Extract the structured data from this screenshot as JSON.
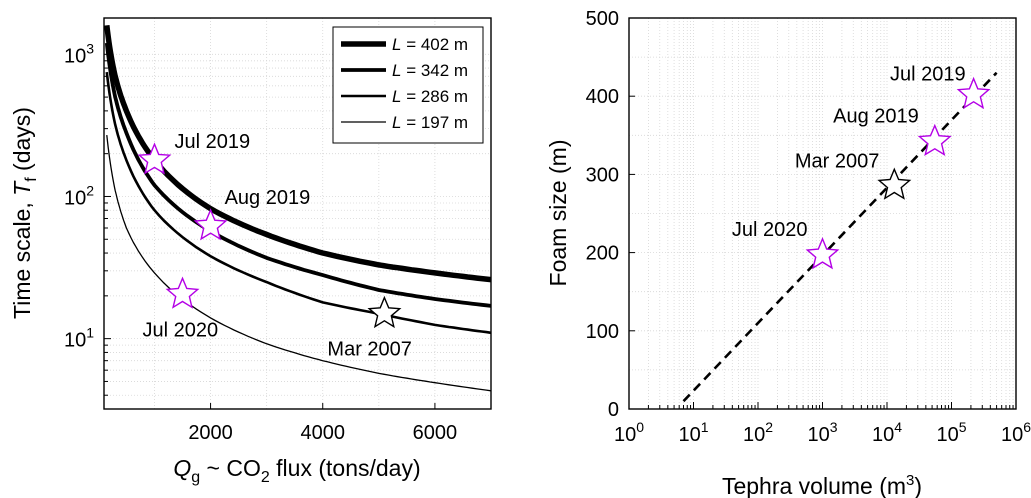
{
  "chart_data": [
    {
      "type": "line",
      "title": "",
      "xlabel": "Q_g ~ CO_2 flux (tons/day)",
      "xlabel_parts": {
        "q": "Q",
        "q_sub": "g",
        "mid": " ~ CO",
        "co2_sub": "2",
        "rest": " flux (tons/day)"
      },
      "ylabel": "Time scale, T_f (days)",
      "ylabel_parts": {
        "main": "Time scale, ",
        "t": "T",
        "t_sub": "f",
        "rest": " (days)"
      },
      "xlim": [
        100,
        7000
      ],
      "ylim": [
        3.2,
        1800
      ],
      "yscale": "log",
      "x_ticks": [
        2000,
        4000,
        6000
      ],
      "x_tick_labels": [
        "2000",
        "4000",
        "6000"
      ],
      "y_ticks": [
        10,
        100,
        1000
      ],
      "y_tick_labels": [
        {
          "base": "10",
          "exp": "1"
        },
        {
          "base": "10",
          "exp": "2"
        },
        {
          "base": "10",
          "exp": "3"
        }
      ],
      "grid": true,
      "legend_position": "top-right",
      "series": [
        {
          "name": "L = 402 m",
          "L": "402",
          "unit": "m",
          "stroke": 5.5,
          "x": [
            150,
            300,
            500,
            1000,
            2000,
            3000,
            4000,
            5000,
            6000,
            7000
          ],
          "y": [
            1600,
            700,
            400,
            180,
            82,
            54,
            40,
            33,
            29,
            26
          ]
        },
        {
          "name": "L = 342 m",
          "L": "342",
          "unit": "m",
          "stroke": 3.8,
          "x": [
            150,
            300,
            500,
            1000,
            2000,
            3000,
            4000,
            5000,
            6000,
            7000
          ],
          "y": [
            1200,
            500,
            280,
            120,
            57,
            37,
            28,
            22,
            19,
            17
          ]
        },
        {
          "name": "L = 286 m",
          "L": "286",
          "unit": "m",
          "stroke": 2.6,
          "x": [
            150,
            300,
            500,
            1000,
            2000,
            3000,
            4000,
            5000,
            6000,
            7000
          ],
          "y": [
            750,
            320,
            180,
            80,
            38,
            25,
            18,
            15,
            12.5,
            11
          ]
        },
        {
          "name": "L = 197 m",
          "L": "197",
          "unit": "m",
          "stroke": 1.3,
          "x": [
            150,
            300,
            500,
            1000,
            2000,
            3000,
            4000,
            5000,
            6000,
            7000
          ],
          "y": [
            270,
            110,
            60,
            29,
            14,
            9.2,
            7,
            5.7,
            4.9,
            4.3
          ]
        }
      ],
      "points": [
        {
          "label": "Jul 2019",
          "x": 1000,
          "y": 180,
          "color": "#b400e6"
        },
        {
          "label": "Aug 2019",
          "x": 2000,
          "y": 62,
          "color": "#b400e6"
        },
        {
          "label": "Jul 2020",
          "x": 1500,
          "y": 20.5,
          "color": "#b400e6"
        },
        {
          "label": "Mar 2007",
          "x": 5100,
          "y": 15,
          "color": "#000000"
        }
      ]
    },
    {
      "type": "scatter",
      "title": "",
      "xlabel": "Tephra volume (m^3)",
      "xlabel_parts": {
        "main": "Tephra volume (m",
        "sup": "3",
        "rest": ")"
      },
      "ylabel": "Foam size (m)",
      "xlim": [
        1,
        1000000
      ],
      "xscale": "log",
      "ylim": [
        0,
        500
      ],
      "x_ticks": [
        1,
        10,
        100,
        1000,
        10000,
        100000,
        1000000
      ],
      "x_tick_labels": [
        {
          "base": "10",
          "exp": "0"
        },
        {
          "base": "10",
          "exp": "1"
        },
        {
          "base": "10",
          "exp": "2"
        },
        {
          "base": "10",
          "exp": "3"
        },
        {
          "base": "10",
          "exp": "4"
        },
        {
          "base": "10",
          "exp": "5"
        },
        {
          "base": "10",
          "exp": "6"
        }
      ],
      "y_ticks": [
        0,
        100,
        200,
        300,
        400,
        500
      ],
      "y_tick_labels": [
        "0",
        "100",
        "200",
        "300",
        "400",
        "500"
      ],
      "grid": true,
      "fit_line": {
        "x": [
          7,
          500000
        ],
        "y": [
          10,
          430
        ],
        "style": "dashed"
      },
      "points": [
        {
          "label": "Jul 2019",
          "x": 220000,
          "y": 402,
          "color": "#b400e6"
        },
        {
          "label": "Aug 2019",
          "x": 55000,
          "y": 342,
          "color": "#b400e6"
        },
        {
          "label": "Mar 2007",
          "x": 13000,
          "y": 286,
          "color": "#000000"
        },
        {
          "label": "Jul 2020",
          "x": 1000,
          "y": 197,
          "color": "#b400e6"
        }
      ]
    }
  ]
}
